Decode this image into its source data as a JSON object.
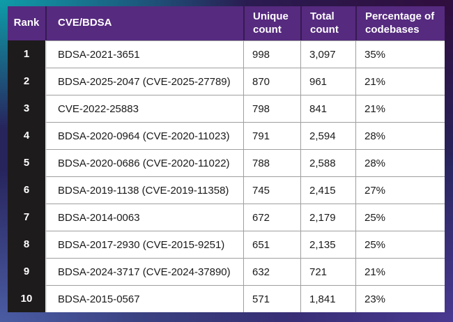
{
  "chart_data": {
    "type": "table",
    "columns": [
      "Rank",
      "CVE/BDSA",
      "Unique count",
      "Total count",
      "Percentage of codebases"
    ],
    "rows": [
      [
        "1",
        "BDSA-2021-3651",
        "998",
        "3,097",
        "35%"
      ],
      [
        "2",
        "BDSA-2025-2047 (CVE-2025-27789)",
        "870",
        "961",
        "21%"
      ],
      [
        "3",
        "CVE-2022-25883",
        "798",
        "841",
        "21%"
      ],
      [
        "4",
        "BDSA-2020-0964 (CVE-2020-11023)",
        "791",
        "2,594",
        "28%"
      ],
      [
        "5",
        "BDSA-2020-0686 (CVE-2020-11022)",
        "788",
        "2,588",
        "28%"
      ],
      [
        "6",
        "BDSA-2019-1138 (CVE-2019-11358)",
        "745",
        "2,415",
        "27%"
      ],
      [
        "7",
        "BDSA-2014-0063",
        "672",
        "2,179",
        "25%"
      ],
      [
        "8",
        "BDSA-2017-2930 (CVE-2015-9251)",
        "651",
        "2,135",
        "25%"
      ],
      [
        "9",
        "BDSA-2024-3717 (CVE-2024-37890)",
        "632",
        "721",
        "21%"
      ],
      [
        "10",
        "BDSA-2015-0567",
        "571",
        "1,841",
        "23%"
      ]
    ],
    "layout": {
      "grid": true,
      "legend": "none"
    }
  },
  "colors": {
    "header_bg": "#562a7f",
    "header_text": "#ffffff",
    "rank_col_bg": "#1e1b1c",
    "row_bg": "#ffffff",
    "grid_line": "#9e9e9e",
    "frame_teal": "#0da3ad",
    "frame_dark_purple": "#310c3c",
    "frame_blue": "#4d5fa7",
    "frame_violet": "#4b3a93"
  }
}
